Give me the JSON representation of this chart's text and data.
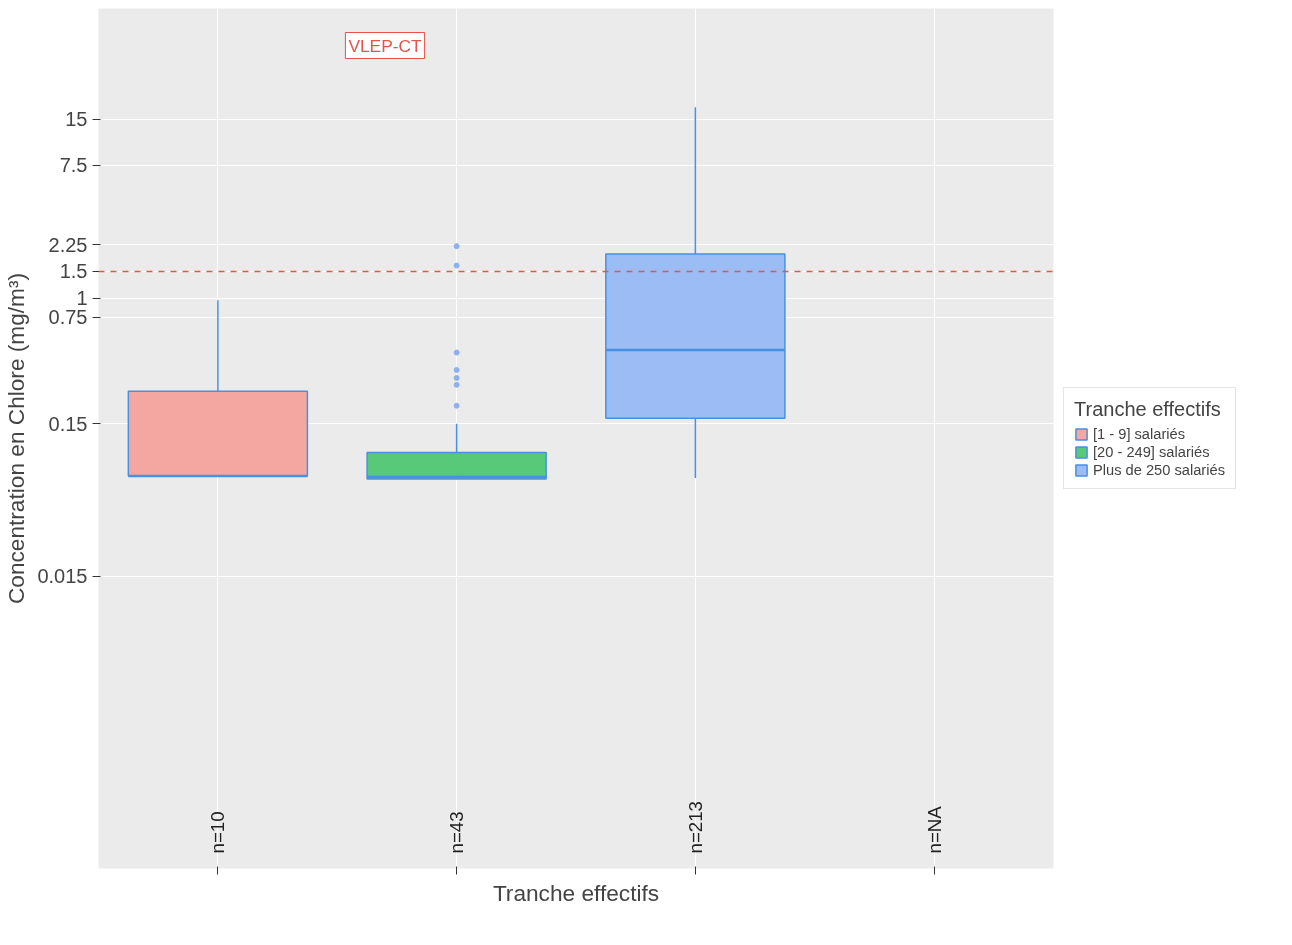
{
  "chart_data": {
    "type": "box",
    "xlabel": "Tranche effectifs",
    "ylabel": "Concentration en Chlore (mg/m³)",
    "legend_title": "Tranche effectifs",
    "categories": [
      null,
      null,
      null,
      null
    ],
    "series": [
      {
        "name": "[1 - 9] salariés",
        "color": "#f4a6a0",
        "boxes": [
          {
            "low": 0.068,
            "q1": 0.068,
            "median": 0.068,
            "q3": 0.245,
            "high": 0.97
          },
          null,
          null,
          null
        ]
      },
      {
        "name": "[20 - 249] salariés",
        "color": "#57c979",
        "boxes": [
          null,
          {
            "low": 0.065,
            "q1": 0.065,
            "median": 0.067,
            "q3": 0.097,
            "high": 0.15,
            "outliers": [
              0.197,
              0.27,
              0.3,
              0.338,
              0.44,
              1.64,
              2.2
            ]
          },
          null,
          null
        ]
      },
      {
        "name": "Plus de 250 salariés",
        "color": "#9bbcf5",
        "boxes": [
          null,
          null,
          {
            "low": 0.066,
            "q1": 0.163,
            "median": 0.457,
            "q3": 1.95,
            "high": 18
          },
          null
        ]
      }
    ],
    "log": "y",
    "ylim": [
      0.00018,
      80
    ],
    "yticks": [
      0.015,
      0.15,
      0.75,
      1,
      1.5,
      2.25,
      7.5,
      15
    ],
    "ref_lines": [
      {
        "axis": "y",
        "value": 1.5,
        "label": "VLEP-CT",
        "color": "#e5534b",
        "line_style": "dashed"
      }
    ],
    "annotations": [
      "n=10",
      "n=43",
      "n=213",
      "n=NA"
    ],
    "grid": true,
    "legend": "right",
    "tick_labels": "y"
  }
}
